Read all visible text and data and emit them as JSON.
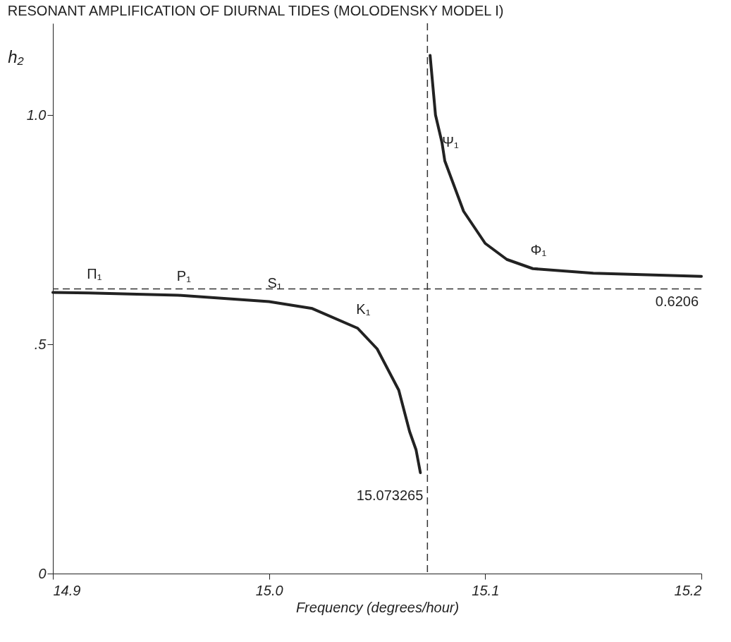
{
  "chart_data": {
    "type": "line",
    "title": "RESONANT AMPLIFICATION OF DIURNAL TIDES (MOLODENSKY MODEL I)",
    "xlabel": "Frequency  (degrees/hour)",
    "ylabel": "h₂",
    "xlim": [
      14.9,
      15.2
    ],
    "xticks": [
      14.9,
      {
        "value": 15.0,
        "label": "15.0"
      },
      15.1,
      15.2
    ],
    "ylim": [
      0,
      1.2
    ],
    "yticks": [
      0,
      {
        "value": 0.5,
        "label": ".5"
      },
      {
        "value": 1.0,
        "label": "1.0"
      }
    ],
    "grid": false,
    "line_style": "solid",
    "marker": "none",
    "series": [
      {
        "color": "#222222",
        "x": [
          14.9,
          14.9166,
          14.958,
          15.0,
          15.02,
          15.041,
          15.05,
          15.06,
          15.065,
          15.068,
          15.07
        ],
        "values": [
          0.613,
          0.612,
          0.607,
          0.593,
          0.578,
          0.535,
          0.49,
          0.4,
          0.31,
          0.27,
          0.22
        ]
      },
      {
        "color": "#222222",
        "x": [
          15.0745,
          15.077,
          15.08,
          15.0813,
          15.09,
          15.1,
          15.11,
          15.122,
          15.15,
          15.2
        ],
        "values": [
          1.13,
          1.0,
          0.94,
          0.9,
          0.79,
          0.72,
          0.685,
          0.665,
          0.655,
          0.648
        ]
      }
    ],
    "ref_lines": [
      {
        "axis": "y",
        "value": 0.6206,
        "label": "0.6206",
        "line_style": "dashed"
      },
      {
        "axis": "x",
        "value": 15.073265,
        "label": "15.073265",
        "line_style": "dashed"
      }
    ],
    "annotations": [
      {
        "text": "Π₁",
        "x": 14.9166,
        "y": 0.612
      },
      {
        "text": "P₁",
        "x": 14.958,
        "y": 0.607
      },
      {
        "text": "S₁",
        "x": 15.0,
        "y": 0.593
      },
      {
        "text": "K₁",
        "x": 15.041,
        "y": 0.535
      },
      {
        "text": "Ψ₁",
        "x": 15.0813,
        "y": 0.9
      },
      {
        "text": "Φ₁",
        "x": 15.122,
        "y": 0.665
      }
    ]
  }
}
